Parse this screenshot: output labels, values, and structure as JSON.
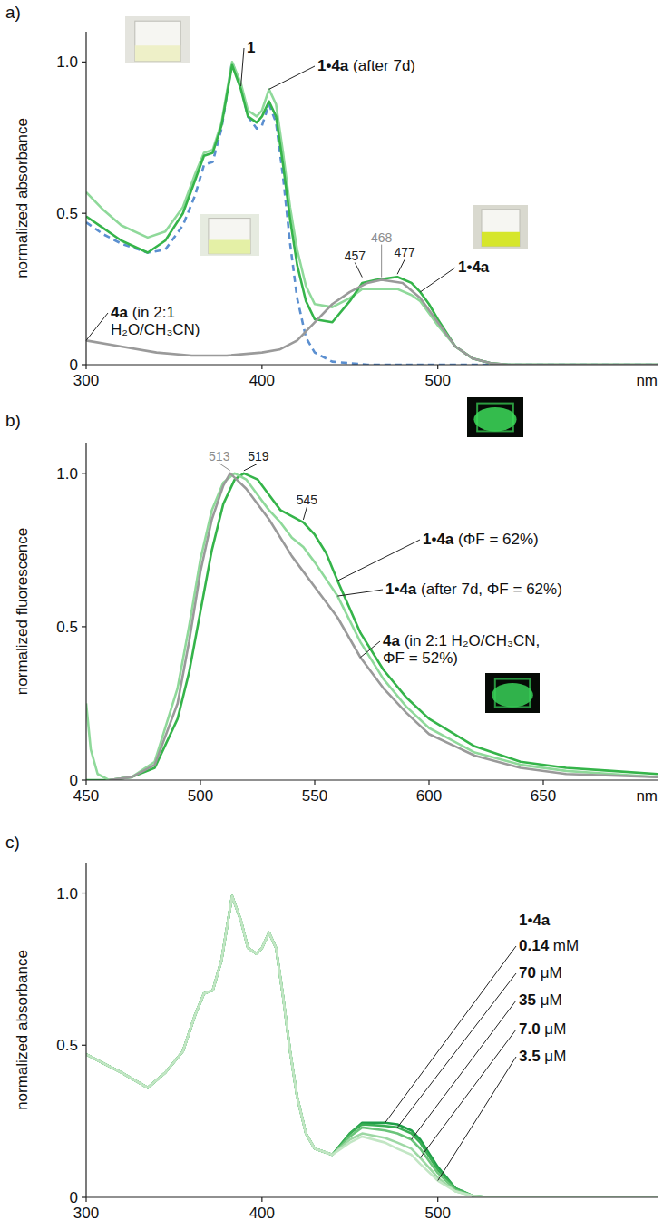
{
  "chart_data": [
    {
      "type": "line",
      "panel": "a)",
      "y_label": "normalized absorbance",
      "x_label": "nm",
      "xlim": [
        300,
        625
      ],
      "xticks": [
        300,
        400,
        500
      ],
      "ylim": [
        0,
        1.1
      ],
      "yticks": [
        0,
        0.5,
        {
          "value": 1,
          "label": "1.0"
        }
      ],
      "series": [
        {
          "name": "1",
          "color": "#5b8fd0",
          "line_style": "dashed",
          "x": [
            300,
            310,
            320,
            335,
            345,
            355,
            362,
            367,
            372,
            377,
            383,
            388,
            392,
            397,
            400,
            404,
            408,
            412,
            416,
            420,
            425,
            430,
            440,
            460,
            500,
            625
          ],
          "values": [
            0.47,
            0.43,
            0.4,
            0.37,
            0.38,
            0.46,
            0.56,
            0.66,
            0.67,
            0.78,
            1.0,
            0.92,
            0.82,
            0.78,
            0.79,
            0.86,
            0.8,
            0.62,
            0.4,
            0.22,
            0.09,
            0.04,
            0.01,
            0,
            0,
            0
          ]
        },
        {
          "name": "1•4a (after 7d)",
          "color": "#8fd99a",
          "line_style": "solid",
          "x": [
            300,
            310,
            320,
            335,
            345,
            355,
            362,
            367,
            372,
            377,
            383,
            388,
            392,
            397,
            400,
            404,
            408,
            412,
            416,
            420,
            425,
            430,
            440,
            450,
            457,
            465,
            477,
            485,
            490,
            495,
            500,
            510,
            520,
            530,
            540,
            625
          ],
          "values": [
            0.57,
            0.51,
            0.46,
            0.42,
            0.44,
            0.52,
            0.63,
            0.7,
            0.71,
            0.8,
            1.0,
            0.93,
            0.84,
            0.82,
            0.84,
            0.91,
            0.86,
            0.7,
            0.52,
            0.38,
            0.26,
            0.2,
            0.19,
            0.22,
            0.25,
            0.25,
            0.25,
            0.23,
            0.21,
            0.17,
            0.13,
            0.06,
            0.02,
            0.005,
            0,
            0
          ]
        },
        {
          "name": "1•4a",
          "color": "#35b44a",
          "line_style": "solid",
          "x": [
            300,
            310,
            320,
            335,
            345,
            355,
            362,
            367,
            372,
            377,
            383,
            388,
            392,
            397,
            400,
            404,
            408,
            412,
            416,
            420,
            425,
            430,
            440,
            450,
            457,
            465,
            477,
            485,
            490,
            495,
            500,
            510,
            520,
            530,
            540,
            625
          ],
          "values": [
            0.49,
            0.45,
            0.41,
            0.37,
            0.41,
            0.5,
            0.61,
            0.69,
            0.7,
            0.79,
            0.99,
            0.91,
            0.82,
            0.8,
            0.82,
            0.87,
            0.82,
            0.66,
            0.48,
            0.33,
            0.21,
            0.15,
            0.14,
            0.21,
            0.27,
            0.28,
            0.29,
            0.27,
            0.24,
            0.2,
            0.15,
            0.06,
            0.02,
            0.005,
            0,
            0
          ]
        },
        {
          "name": "4a (in 2:1 H₂O/CH₃CN)",
          "color": "#9a9a9a",
          "line_style": "solid",
          "x": [
            300,
            320,
            340,
            360,
            380,
            400,
            410,
            420,
            430,
            440,
            450,
            460,
            468,
            480,
            490,
            500,
            510,
            520,
            530,
            540,
            625
          ],
          "values": [
            0.08,
            0.06,
            0.04,
            0.03,
            0.03,
            0.04,
            0.05,
            0.08,
            0.14,
            0.2,
            0.24,
            0.27,
            0.28,
            0.27,
            0.22,
            0.14,
            0.06,
            0.02,
            0.005,
            0,
            0
          ]
        }
      ],
      "annotations": [
        {
          "text": "457",
          "x": 457,
          "y": 0.28,
          "color": "#222222"
        },
        {
          "text": "468",
          "x": 468,
          "y": 0.28,
          "color": "#8c8c8c"
        },
        {
          "text": "477",
          "x": 477,
          "y": 0.29,
          "color": "#222222"
        }
      ]
    },
    {
      "type": "line",
      "panel": "b)",
      "y_label": "normalized fluorescence",
      "x_label": "nm",
      "xlim": [
        450,
        700
      ],
      "xticks": [
        450,
        500,
        550,
        600,
        650
      ],
      "ylim": [
        0,
        1.1
      ],
      "yticks": [
        0,
        0.5,
        {
          "value": 1,
          "label": "1.0"
        }
      ],
      "series": [
        {
          "name": "1•4a (ΦF = 62%)",
          "color": "#35b44a",
          "line_style": "solid",
          "x": [
            450,
            460,
            470,
            480,
            490,
            495,
            500,
            505,
            510,
            515,
            519,
            525,
            530,
            535,
            540,
            545,
            550,
            555,
            560,
            570,
            580,
            590,
            600,
            620,
            640,
            660,
            680,
            700
          ],
          "values": [
            0,
            0,
            0.01,
            0.04,
            0.2,
            0.35,
            0.55,
            0.75,
            0.9,
            0.98,
            1.0,
            0.98,
            0.93,
            0.88,
            0.86,
            0.84,
            0.8,
            0.74,
            0.65,
            0.48,
            0.36,
            0.27,
            0.2,
            0.11,
            0.06,
            0.04,
            0.03,
            0.02
          ]
        },
        {
          "name": "1•4a (after 7d, ΦF = 62%)",
          "color": "#8fd99a",
          "line_style": "solid",
          "x": [
            450,
            452,
            455,
            460,
            470,
            480,
            490,
            495,
            500,
            505,
            510,
            515,
            520,
            525,
            530,
            535,
            540,
            545,
            550,
            560,
            570,
            580,
            590,
            600,
            620,
            640,
            660,
            680,
            700
          ],
          "values": [
            0.25,
            0.1,
            0.02,
            0,
            0.01,
            0.06,
            0.3,
            0.5,
            0.72,
            0.88,
            0.97,
            1.0,
            0.98,
            0.93,
            0.88,
            0.84,
            0.79,
            0.76,
            0.71,
            0.6,
            0.45,
            0.33,
            0.24,
            0.17,
            0.09,
            0.05,
            0.03,
            0.02,
            0.01
          ]
        },
        {
          "name": "4a (in 2:1 H₂O/CH₃CN, ΦF = 52%)",
          "color": "#9a9a9a",
          "line_style": "solid",
          "x": [
            460,
            470,
            480,
            490,
            495,
            500,
            505,
            510,
            513,
            520,
            530,
            540,
            550,
            560,
            570,
            580,
            590,
            600,
            620,
            640,
            660,
            680,
            700
          ],
          "values": [
            0,
            0.01,
            0.05,
            0.25,
            0.45,
            0.68,
            0.85,
            0.96,
            1.0,
            0.95,
            0.85,
            0.73,
            0.63,
            0.53,
            0.4,
            0.3,
            0.22,
            0.15,
            0.08,
            0.04,
            0.02,
            0.015,
            0.01
          ]
        }
      ],
      "annotations": [
        {
          "text": "513",
          "x": 513,
          "y": 1.0,
          "color": "#8c8c8c"
        },
        {
          "text": "519",
          "x": 519,
          "y": 1.0,
          "color": "#222222"
        },
        {
          "text": "545",
          "x": 545,
          "y": 0.84,
          "color": "#222222"
        }
      ]
    },
    {
      "type": "line",
      "panel": "c)",
      "y_label": "normalized absorbance",
      "legend_title": "1•4a",
      "xlim": [
        300,
        625
      ],
      "xticks": [
        300,
        400,
        500
      ],
      "ylim": [
        0,
        1.1
      ],
      "yticks": [
        0,
        0.5,
        {
          "value": 1,
          "label": "1.0"
        }
      ],
      "series": [
        {
          "name": "0.14 mM",
          "color": "#1f9e48",
          "line_style": "solid",
          "x": [
            300,
            310,
            320,
            335,
            345,
            355,
            362,
            367,
            372,
            377,
            383,
            388,
            392,
            397,
            400,
            404,
            408,
            412,
            416,
            420,
            425,
            430,
            440,
            450,
            457,
            470,
            477,
            485,
            490,
            500,
            510,
            520,
            530,
            625
          ],
          "values": [
            0.47,
            0.44,
            0.41,
            0.36,
            0.41,
            0.48,
            0.6,
            0.67,
            0.68,
            0.78,
            0.99,
            0.91,
            0.82,
            0.8,
            0.82,
            0.87,
            0.82,
            0.66,
            0.48,
            0.33,
            0.21,
            0.16,
            0.14,
            0.21,
            0.245,
            0.245,
            0.24,
            0.22,
            0.19,
            0.1,
            0.03,
            0.005,
            0,
            0
          ]
        },
        {
          "name": "70 μM",
          "color": "#3aae55",
          "line_style": "solid",
          "x": [
            300,
            310,
            320,
            335,
            345,
            355,
            362,
            367,
            372,
            377,
            383,
            388,
            392,
            397,
            400,
            404,
            408,
            412,
            416,
            420,
            425,
            430,
            440,
            450,
            457,
            470,
            477,
            485,
            490,
            500,
            510,
            520,
            530,
            625
          ],
          "values": [
            0.47,
            0.44,
            0.41,
            0.36,
            0.41,
            0.48,
            0.6,
            0.67,
            0.68,
            0.78,
            0.99,
            0.91,
            0.82,
            0.8,
            0.82,
            0.87,
            0.82,
            0.66,
            0.48,
            0.33,
            0.21,
            0.16,
            0.14,
            0.21,
            0.24,
            0.235,
            0.23,
            0.21,
            0.18,
            0.09,
            0.03,
            0.005,
            0,
            0
          ]
        },
        {
          "name": "35 μM",
          "color": "#6bc47a",
          "line_style": "solid",
          "x": [
            300,
            310,
            320,
            335,
            345,
            355,
            362,
            367,
            372,
            377,
            383,
            388,
            392,
            397,
            400,
            404,
            408,
            412,
            416,
            420,
            425,
            430,
            440,
            450,
            457,
            470,
            477,
            485,
            490,
            500,
            510,
            520,
            530,
            625
          ],
          "values": [
            0.47,
            0.44,
            0.41,
            0.36,
            0.41,
            0.48,
            0.6,
            0.67,
            0.68,
            0.78,
            0.99,
            0.91,
            0.82,
            0.8,
            0.82,
            0.87,
            0.82,
            0.66,
            0.48,
            0.33,
            0.21,
            0.16,
            0.14,
            0.2,
            0.23,
            0.22,
            0.21,
            0.19,
            0.16,
            0.08,
            0.025,
            0.005,
            0,
            0
          ]
        },
        {
          "name": "7.0 μM",
          "color": "#9dd8a4",
          "line_style": "solid",
          "x": [
            300,
            310,
            320,
            335,
            345,
            355,
            362,
            367,
            372,
            377,
            383,
            388,
            392,
            397,
            400,
            404,
            408,
            412,
            416,
            420,
            425,
            430,
            440,
            450,
            457,
            470,
            477,
            485,
            490,
            500,
            510,
            520,
            530,
            625
          ],
          "values": [
            0.47,
            0.44,
            0.41,
            0.36,
            0.41,
            0.48,
            0.6,
            0.67,
            0.68,
            0.78,
            0.99,
            0.91,
            0.82,
            0.8,
            0.82,
            0.87,
            0.82,
            0.66,
            0.48,
            0.33,
            0.21,
            0.16,
            0.14,
            0.19,
            0.21,
            0.195,
            0.18,
            0.16,
            0.13,
            0.065,
            0.02,
            0.005,
            0,
            0
          ]
        },
        {
          "name": "3.5 μM",
          "color": "#c2e6c4",
          "line_style": "solid",
          "x": [
            300,
            310,
            320,
            335,
            345,
            355,
            362,
            367,
            372,
            377,
            383,
            388,
            392,
            397,
            400,
            404,
            408,
            412,
            416,
            420,
            425,
            430,
            440,
            450,
            457,
            470,
            477,
            485,
            490,
            500,
            510,
            520,
            530,
            625
          ],
          "values": [
            0.47,
            0.44,
            0.41,
            0.36,
            0.41,
            0.48,
            0.6,
            0.67,
            0.68,
            0.78,
            0.99,
            0.91,
            0.82,
            0.8,
            0.82,
            0.87,
            0.82,
            0.66,
            0.48,
            0.33,
            0.21,
            0.16,
            0.14,
            0.18,
            0.2,
            0.18,
            0.16,
            0.14,
            0.11,
            0.055,
            0.02,
            0.005,
            0,
            0
          ]
        }
      ]
    }
  ]
}
